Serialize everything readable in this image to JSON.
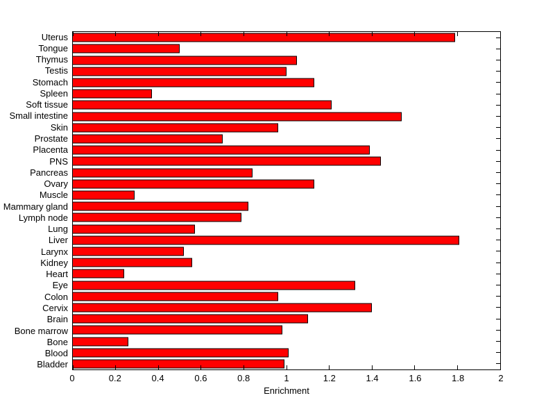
{
  "figure": {
    "background_color": "#ffffff",
    "bar_fill_color": "#ff0000",
    "bar_border_color": "#000000",
    "axis_color": "#000000"
  },
  "chart_data": {
    "type": "bar",
    "orientation": "horizontal",
    "title": "",
    "xlabel": "Enrichment",
    "ylabel": "",
    "xlim": [
      0,
      2
    ],
    "grid": false,
    "legend": null,
    "x_ticks": [
      0,
      0.2,
      0.4,
      0.6,
      0.8,
      1,
      1.2,
      1.4,
      1.6,
      1.8,
      2
    ],
    "x_tick_labels": [
      "0",
      "0.2",
      "0.4",
      "0.6",
      "0.8",
      "1",
      "1.2",
      "1.4",
      "1.6",
      "1.8",
      "2"
    ],
    "categories": [
      "Uterus",
      "Tongue",
      "Thymus",
      "Testis",
      "Stomach",
      "Spleen",
      "Soft tissue",
      "Small intestine",
      "Skin",
      "Prostate",
      "Placenta",
      "PNS",
      "Pancreas",
      "Ovary",
      "Muscle",
      "Mammary gland",
      "Lymph node",
      "Lung",
      "Liver",
      "Larynx",
      "Kidney",
      "Heart",
      "Eye",
      "Colon",
      "Cervix",
      "Brain",
      "Bone marrow",
      "Bone",
      "Blood",
      "Bladder"
    ],
    "values": [
      1.79,
      0.5,
      1.05,
      1.0,
      1.13,
      0.37,
      1.21,
      1.54,
      0.96,
      0.7,
      1.39,
      1.44,
      0.84,
      1.13,
      0.29,
      0.82,
      0.79,
      0.57,
      1.81,
      0.52,
      0.56,
      0.24,
      1.32,
      0.96,
      1.4,
      1.1,
      0.98,
      0.26,
      1.01,
      0.99
    ]
  }
}
